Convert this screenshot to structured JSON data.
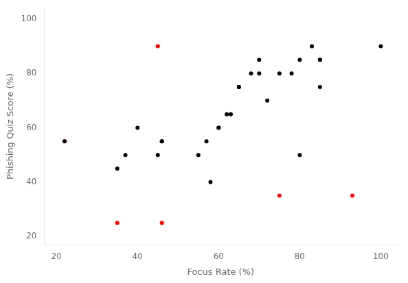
{
  "chart_data": {
    "type": "scatter",
    "xlabel": "Focus Rate (%)",
    "ylabel": "Phishing Quiz Score (%)",
    "series": [
      {
        "color": "#000000",
        "x": [
          22,
          35,
          37,
          40,
          45,
          46,
          46,
          55,
          57,
          58,
          60,
          60,
          62,
          63,
          65,
          65,
          68,
          70,
          70,
          72,
          75,
          78,
          80,
          80,
          83,
          85,
          85,
          85,
          100
        ],
        "values": [
          55,
          45,
          50,
          60,
          50,
          55,
          55,
          50,
          55,
          40,
          60,
          60,
          65,
          65,
          75,
          75,
          80,
          85,
          80,
          70,
          80,
          80,
          85,
          50,
          90,
          85,
          85,
          75,
          90
        ]
      },
      {
        "color": "#FF0000",
        "x": [
          22,
          35,
          45,
          46,
          75,
          93
        ],
        "values": [
          55,
          25,
          90,
          25,
          35,
          35
        ]
      }
    ],
    "xlim": [
      17,
      104
    ],
    "ylim": [
      17,
      104
    ],
    "xticks": [
      20,
      40,
      60,
      80,
      100
    ],
    "yticks": [
      20,
      40,
      60,
      80,
      100
    ],
    "grid": false
  }
}
